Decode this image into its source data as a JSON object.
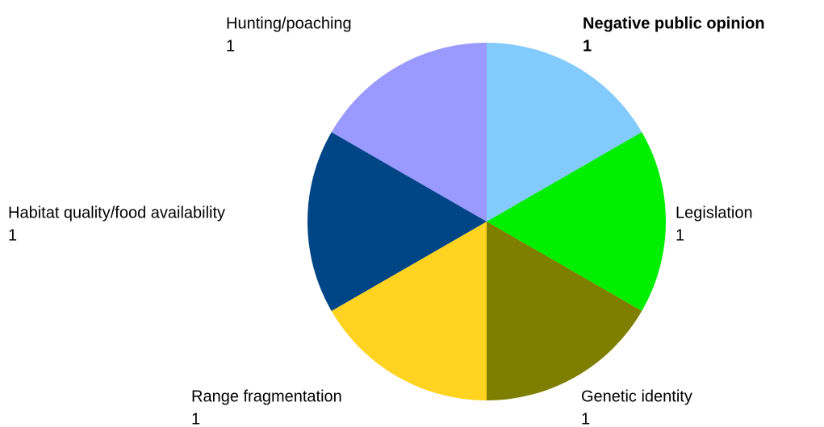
{
  "chart_data": {
    "type": "pie",
    "categories": [
      "Negative public opinion",
      "Legislation",
      "Genetic identity",
      "Range fragmentation",
      "Habitat quality/food availability",
      "Hunting/poaching"
    ],
    "values": [
      1,
      1,
      1,
      1,
      1,
      1
    ],
    "colors": [
      "#83caff",
      "#00ee00",
      "#7e7e00",
      "#ffd320",
      "#004586",
      "#9999ff"
    ],
    "label_highlight": {
      "index": 0,
      "color": "#7e0000"
    }
  }
}
